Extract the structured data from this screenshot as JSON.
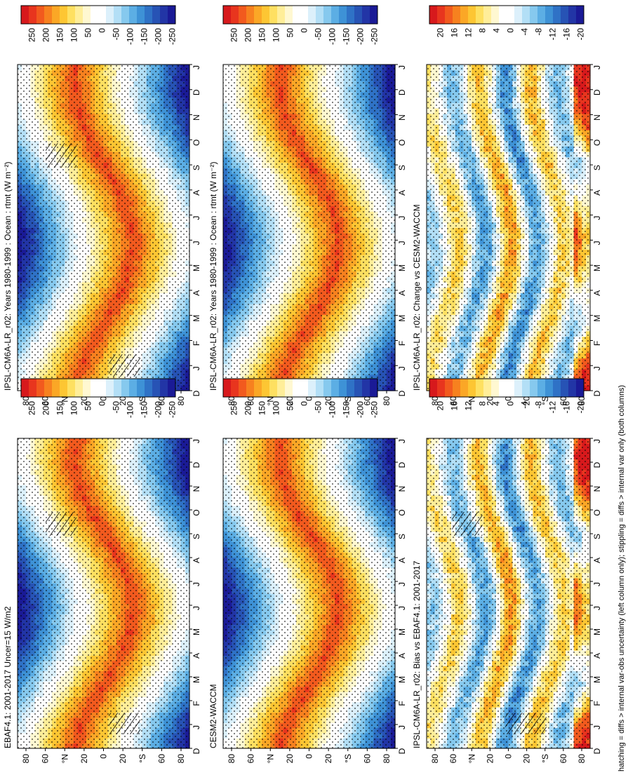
{
  "figure": {
    "footnote": "hatching = diffs > internal var-obs uncertainty (left column only); stippling = diffs > internal var only (both columns)"
  },
  "chart_data": [
    {
      "type": "heatmap",
      "title": "IPSL-CM6A-LR_r02: Years 1980-1999 : Ocean : rtmt (W m⁻²)",
      "kind": "clim",
      "months": [
        "D",
        "J",
        "F",
        "M",
        "A",
        "M",
        "J",
        "J",
        "A",
        "S",
        "O",
        "N",
        "D",
        "J"
      ],
      "lat_ticks": [
        "80",
        "60",
        "°N",
        "20",
        "0",
        "20",
        "°S",
        "60",
        "80"
      ],
      "hatch_bands": [
        [
          80,
          94,
          170,
          200
        ],
        [
          170,
          185,
          530,
          556
        ]
      ],
      "seed": 11
    },
    {
      "type": "heatmap",
      "title": "IPSL-CM6A-LR_r02: Years 1980-1999 : Ocean : rtmt (W m⁻²)",
      "kind": "clim",
      "months": [
        "D",
        "J",
        "F",
        "M",
        "A",
        "M",
        "J",
        "J",
        "A",
        "S",
        "O",
        "N",
        "D",
        "J"
      ],
      "lat_ticks": [
        "80",
        "60",
        "°N",
        "20",
        "0",
        "20",
        "°S",
        "60",
        "80"
      ],
      "hatch_bands": [],
      "seed": 23
    },
    {
      "type": "heatmap",
      "title": "EBAF4.1: 2001-2017 Uncer=15 W/m2",
      "kind": "clim",
      "months": [
        "D",
        "J",
        "F",
        "M",
        "A",
        "M",
        "J",
        "J",
        "A",
        "S",
        "O",
        "N",
        "D",
        "J"
      ],
      "lat_ticks": [
        "80",
        "60",
        "°N",
        "20",
        "0",
        "20",
        "°S",
        "60",
        "80"
      ],
      "hatch_bands": [
        [
          80,
          94,
          170,
          200
        ],
        [
          170,
          185,
          530,
          556
        ]
      ],
      "seed": 37
    },
    {
      "type": "heatmap",
      "title": "CESM2-WACCM",
      "kind": "clim",
      "months": [
        "D",
        "J",
        "F",
        "M",
        "A",
        "M",
        "J",
        "J",
        "A",
        "S",
        "O",
        "N",
        "D",
        "J"
      ],
      "lat_ticks": [
        "80",
        "60",
        "°N",
        "20",
        "0",
        "20",
        "°S",
        "60",
        "80"
      ],
      "hatch_bands": [],
      "seed": 41
    },
    {
      "type": "heatmap",
      "title": "IPSL-CM6A-LR_r02: Bias vs EBAF4.1: 2001-2017",
      "kind": "diff",
      "months": [
        "D",
        "J",
        "F",
        "M",
        "A",
        "M",
        "J",
        "J",
        "A",
        "S",
        "O",
        "N",
        "D",
        "J"
      ],
      "lat_ticks": [
        "80",
        "60",
        "°N",
        "20",
        "0",
        "20",
        "°S",
        "60",
        "80"
      ],
      "hatch_bands": [
        [
          80,
          94,
          170,
          200
        ],
        [
          160,
          190,
          530,
          556
        ]
      ],
      "seed": 53
    },
    {
      "type": "heatmap",
      "title": "IPSL-CM6A-LR_r02: Change vs CESM2-WACCM",
      "kind": "diff",
      "months": [
        "D",
        "J",
        "F",
        "M",
        "A",
        "M",
        "J",
        "J",
        "A",
        "S",
        "O",
        "N",
        "D",
        "J"
      ],
      "lat_ticks": [
        "80",
        "60",
        "°N",
        "20",
        "0",
        "20",
        "°S",
        "60",
        "80"
      ],
      "hatch_bands": [],
      "seed": 67
    }
  ],
  "colorbars": {
    "clim": {
      "labels": [
        "250",
        "200",
        "150",
        "100",
        "50",
        "0",
        "-50",
        "-100",
        "-150",
        "-200",
        "-250"
      ],
      "colors": [
        "#d7191c",
        "#e8351e",
        "#f25a1e",
        "#f7811f",
        "#fba726",
        "#fdc633",
        "#fee061",
        "#ffee99",
        "#fff8d1",
        "#ffffff",
        "#ffffff",
        "#dcf0fb",
        "#b3dff6",
        "#86c9ee",
        "#5caee4",
        "#3e92d6",
        "#2f72c6",
        "#2753b5",
        "#2235a6",
        "#1a1a96"
      ]
    },
    "diff": {
      "labels": [
        "20",
        "16",
        "12",
        "8",
        "4",
        "0",
        "-4",
        "-8",
        "-12",
        "-16",
        "-20"
      ],
      "colors": [
        "#d7191c",
        "#e8351e",
        "#f25a1e",
        "#f7811f",
        "#fba726",
        "#fdc633",
        "#fee061",
        "#ffee99",
        "#fff8d1",
        "#ffffff",
        "#ffffff",
        "#dcf0fb",
        "#b3dff6",
        "#86c9ee",
        "#5caee4",
        "#3e92d6",
        "#2f72c6",
        "#2753b5",
        "#2235a6",
        "#1a1a96"
      ]
    }
  }
}
